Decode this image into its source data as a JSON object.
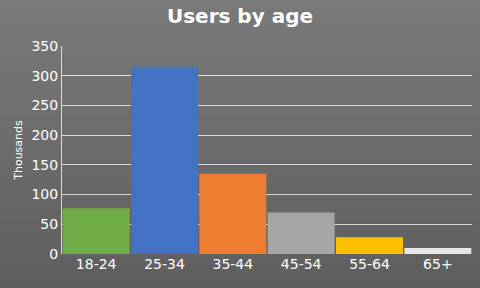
{
  "chart_data": {
    "type": "bar",
    "title": "Users by age",
    "y_label": "Thousands",
    "categories": [
      "18-24",
      "25-34",
      "35-44",
      "45-54",
      "55-64",
      "65+"
    ],
    "values": [
      77,
      315,
      135,
      70,
      28,
      10
    ],
    "colors": [
      "#70ad47",
      "#4472c4",
      "#ed7d31",
      "#a5a5a5",
      "#ffc000",
      "#e6e6e6"
    ],
    "ylim": [
      0,
      350
    ],
    "yticks": [
      0,
      50,
      100,
      150,
      200,
      250,
      300,
      350
    ],
    "grid": true
  }
}
